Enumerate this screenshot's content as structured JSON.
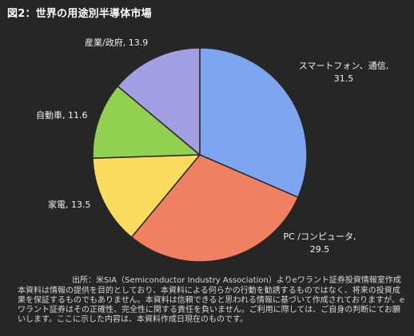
{
  "title": "図2：世界の用途別半導体市場",
  "source": "出所：米SIA（Semiconductor Industry Association）よりeワラント証券投資情報室作成",
  "disclaimer": "本資料は情報の提供を目的としており、本資料による何らかの行動を勧誘するものではなく、将来の投資成果を保証するものでもありません。本資料は信頼できると思われる情報に基づいて作成されておりますが、eワラント証券はその正確性、完全性に関する責任を負いません。ご利用に際しては、ご自身の判断にてお願いします。ここに示した内容は、本資料作成日現在のものです。",
  "chart_data": {
    "type": "pie",
    "start": "12 o'clock, clockwise",
    "slices": [
      {
        "label": "スマートフォン、通信",
        "value": 31.5,
        "color": "#7ea6f0"
      },
      {
        "label": "PC /コンピュータ",
        "value": 29.5,
        "color": "#f08062"
      },
      {
        "label": "家電",
        "value": 13.5,
        "color": "#fcdc5e"
      },
      {
        "label": "自動車",
        "value": 11.6,
        "color": "#92d050"
      },
      {
        "label": "産業/政府",
        "value": 13.9,
        "color": "#a49ee2"
      }
    ]
  }
}
